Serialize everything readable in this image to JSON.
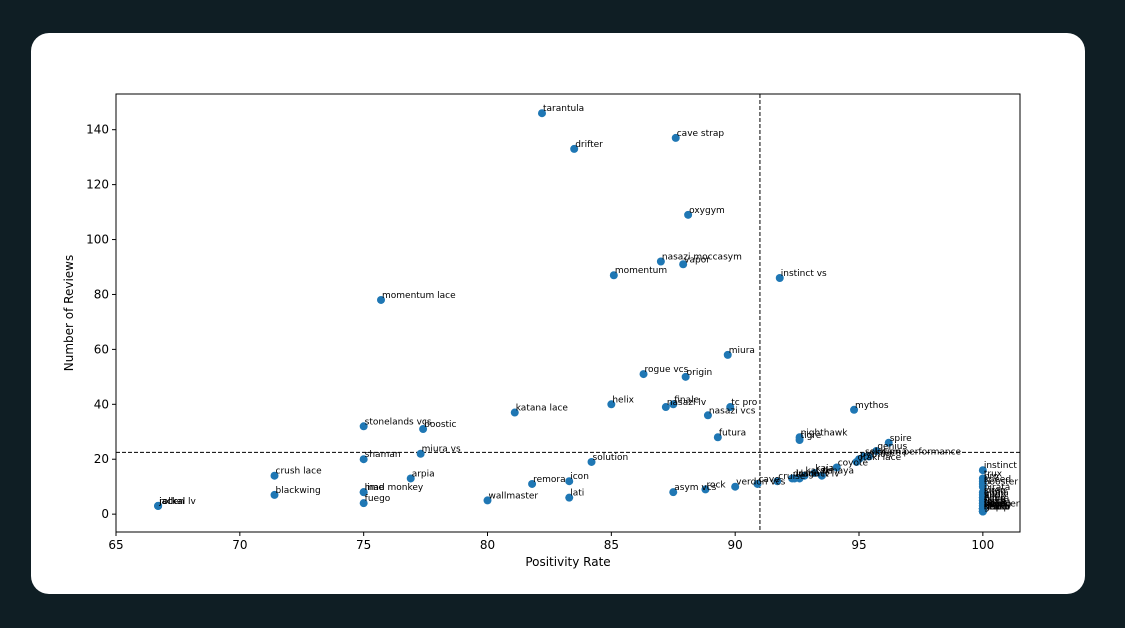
{
  "chart_data": {
    "type": "scatter",
    "title": "",
    "xlabel": "Positivity Rate",
    "ylabel": "Number of Reviews",
    "xlim": [
      65,
      101.5
    ],
    "ylim": [
      -6.5,
      153
    ],
    "xticks": [
      65,
      70,
      75,
      80,
      85,
      90,
      95,
      100
    ],
    "yticks": [
      0,
      20,
      40,
      60,
      80,
      100,
      120,
      140
    ],
    "grid": false,
    "reference_lines": {
      "x": 91.0,
      "y": 22.5
    },
    "marker_color": "#1f77b4",
    "points": [
      {
        "name": "tarantula",
        "x": 82.2,
        "y": 146
      },
      {
        "name": "cave strap",
        "x": 87.6,
        "y": 137
      },
      {
        "name": "drifter",
        "x": 83.5,
        "y": 133
      },
      {
        "name": "oxygym",
        "x": 88.1,
        "y": 109
      },
      {
        "name": "nasazi moccasym",
        "x": 87.0,
        "y": 92
      },
      {
        "name": "vapor",
        "x": 87.9,
        "y": 91
      },
      {
        "name": "momentum",
        "x": 85.1,
        "y": 87
      },
      {
        "name": "instinct vs",
        "x": 91.8,
        "y": 86
      },
      {
        "name": "momentum lace",
        "x": 75.7,
        "y": 78
      },
      {
        "name": "miura",
        "x": 89.7,
        "y": 58
      },
      {
        "name": "rogue vcs",
        "x": 86.3,
        "y": 51
      },
      {
        "name": "origin",
        "x": 88.0,
        "y": 50
      },
      {
        "name": "helix",
        "x": 85.0,
        "y": 40
      },
      {
        "name": "finale",
        "x": 87.5,
        "y": 40
      },
      {
        "name": "nasazi lv",
        "x": 87.2,
        "y": 39
      },
      {
        "name": "tc pro",
        "x": 89.8,
        "y": 39
      },
      {
        "name": "mythos",
        "x": 94.8,
        "y": 38
      },
      {
        "name": "katana lace",
        "x": 81.1,
        "y": 37
      },
      {
        "name": "nasazi vcs",
        "x": 88.9,
        "y": 36
      },
      {
        "name": "stonelands vcs",
        "x": 75.0,
        "y": 32
      },
      {
        "name": "boostic",
        "x": 77.4,
        "y": 31
      },
      {
        "name": "futura",
        "x": 89.3,
        "y": 28
      },
      {
        "name": "tigre",
        "x": 92.6,
        "y": 27
      },
      {
        "name": "nighthawk",
        "x": 92.6,
        "y": 28
      },
      {
        "name": "spire",
        "x": 96.2,
        "y": 26
      },
      {
        "name": "genius",
        "x": 95.7,
        "y": 23
      },
      {
        "name": "skwama",
        "x": 95.4,
        "y": 21
      },
      {
        "name": "solution performance",
        "x": 95.2,
        "y": 21
      },
      {
        "name": "miura vs",
        "x": 77.3,
        "y": 22
      },
      {
        "name": "shaman",
        "x": 75.0,
        "y": 20
      },
      {
        "name": "solution",
        "x": 84.2,
        "y": 19
      },
      {
        "name": "python",
        "x": 95.0,
        "y": 20
      },
      {
        "name": "otaki lace",
        "x": 94.9,
        "y": 19
      },
      {
        "name": "coyote",
        "x": 94.1,
        "y": 17
      },
      {
        "name": "instinct",
        "x": 100,
        "y": 16
      },
      {
        "name": "crush lace",
        "x": 71.4,
        "y": 14
      },
      {
        "name": "arpia",
        "x": 76.9,
        "y": 13
      },
      {
        "name": "kaja",
        "x": 93.2,
        "y": 15
      },
      {
        "name": "kataki",
        "x": 92.8,
        "y": 14
      },
      {
        "name": "tenaya",
        "x": 93.5,
        "y": 14
      },
      {
        "name": "instinct lv",
        "x": 92.4,
        "y": 13
      },
      {
        "name": "drago",
        "x": 92.3,
        "y": 13
      },
      {
        "name": "lace lv",
        "x": 92.6,
        "y": 13
      },
      {
        "name": "cruise",
        "x": 91.7,
        "y": 12
      },
      {
        "name": "cave",
        "x": 90.9,
        "y": 11
      },
      {
        "name": "icon",
        "x": 83.3,
        "y": 12
      },
      {
        "name": "remora",
        "x": 81.8,
        "y": 11
      },
      {
        "name": "trux",
        "x": 100,
        "y": 13
      },
      {
        "name": "pro",
        "x": 100,
        "y": 12
      },
      {
        "name": "speed",
        "x": 100,
        "y": 11
      },
      {
        "name": "verdon vcs",
        "x": 90.0,
        "y": 10
      },
      {
        "name": "rock",
        "x": 88.8,
        "y": 9
      },
      {
        "name": "asym vcs",
        "x": 87.5,
        "y": 8
      },
      {
        "name": "booster",
        "x": 100,
        "y": 10
      },
      {
        "name": "blackwing",
        "x": 71.4,
        "y": 7
      },
      {
        "name": "mad monkey",
        "x": 75.0,
        "y": 8
      },
      {
        "name": "lime",
        "x": 75.0,
        "y": 8
      },
      {
        "name": "lati",
        "x": 83.3,
        "y": 6
      },
      {
        "name": "wallmaster",
        "x": 80.0,
        "y": 5
      },
      {
        "name": "fuego",
        "x": 75.0,
        "y": 4
      },
      {
        "name": "pirata",
        "x": 100,
        "y": 8
      },
      {
        "name": "siren",
        "x": 100,
        "y": 7
      },
      {
        "name": "alpha",
        "x": 100,
        "y": 6
      },
      {
        "name": "edge",
        "x": 100,
        "y": 6
      },
      {
        "name": "air",
        "x": 100,
        "y": 5
      },
      {
        "name": "hoop",
        "x": 100,
        "y": 5
      },
      {
        "name": "ninja",
        "x": 100,
        "y": 4
      },
      {
        "name": "cobra",
        "x": 100,
        "y": 4
      },
      {
        "name": "force",
        "x": 100,
        "y": 3
      },
      {
        "name": "flash",
        "x": 100,
        "y": 3
      },
      {
        "name": "shark",
        "x": 100,
        "y": 2
      },
      {
        "name": "zone",
        "x": 100,
        "y": 2
      },
      {
        "name": "lava",
        "x": 100,
        "y": 2
      },
      {
        "name": "thunder",
        "x": 100,
        "y": 2
      },
      {
        "name": "titan",
        "x": 100,
        "y": 1
      },
      {
        "name": "storm",
        "x": 100,
        "y": 1
      },
      {
        "name": "grip",
        "x": 100,
        "y": 1
      },
      {
        "name": "sharp",
        "x": 100,
        "y": 1
      },
      {
        "name": "focus",
        "x": 100,
        "y": 2
      },
      {
        "name": "bionic",
        "x": 100,
        "y": 2
      },
      {
        "name": "gecko",
        "x": 100,
        "y": 1
      },
      {
        "name": "falcon",
        "x": 100,
        "y": 2
      },
      {
        "name": "clamp",
        "x": 100,
        "y": 2
      },
      {
        "name": "jackal lv",
        "x": 66.7,
        "y": 3
      },
      {
        "name": "jackal",
        "x": 66.7,
        "y": 3
      },
      {
        "name": "rollen",
        "x": 66.7,
        "y": 3
      }
    ]
  }
}
